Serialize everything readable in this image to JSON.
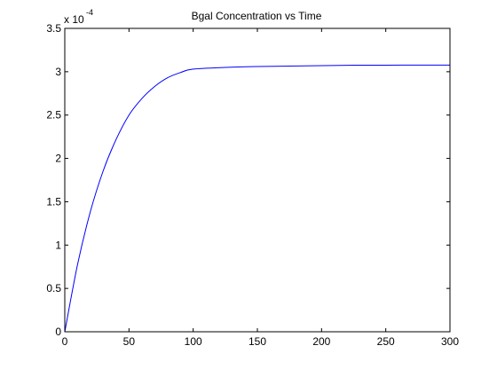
{
  "chart_data": {
    "type": "line",
    "title": "Bgal Concentration vs Time",
    "xlabel": "",
    "ylabel": "",
    "y_scale_label": {
      "base": "x 10",
      "exponent": "-4"
    },
    "xlim": [
      0,
      300
    ],
    "ylim": [
      0,
      3.5
    ],
    "x_ticks": [
      0,
      50,
      100,
      150,
      200,
      250,
      300
    ],
    "x_tick_labels": [
      "0",
      "50",
      "100",
      "150",
      "200",
      "250",
      "300"
    ],
    "y_ticks": [
      0,
      0.5,
      1,
      1.5,
      2,
      2.5,
      3,
      3.5
    ],
    "y_tick_labels": [
      "0",
      "0.5",
      "1",
      "1.5",
      "2",
      "2.5",
      "3",
      "3.5"
    ],
    "grid": false,
    "series": [
      {
        "color": "#0000ff",
        "x": [
          0,
          10,
          20,
          30,
          40,
          50,
          60,
          70,
          80,
          90,
          100,
          125,
          150,
          175,
          200,
          225,
          250,
          275,
          300
        ],
        "y": [
          0,
          0.78,
          1.39,
          1.86,
          2.22,
          2.5,
          2.69,
          2.83,
          2.93,
          2.99,
          3.03,
          3.05,
          3.06,
          3.065,
          3.07,
          3.075,
          3.075,
          3.077,
          3.077
        ]
      }
    ]
  }
}
